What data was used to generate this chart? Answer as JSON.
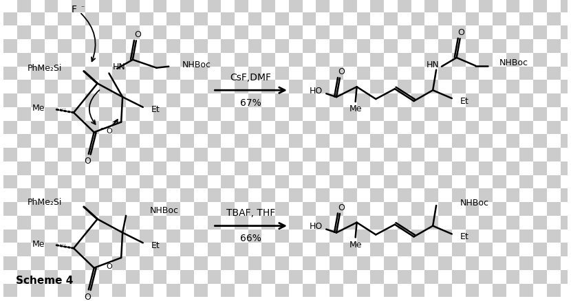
{
  "background_checker": {
    "color1": "#cccccc",
    "color2": "#ffffff",
    "square_size": 20
  },
  "title": "Scheme 4",
  "reaction1": {
    "reagents": "CsF,DMF",
    "yield": "67%"
  },
  "reaction2": {
    "reagents": "TBAF, THF",
    "yield": "66%"
  },
  "line_color": "#000000",
  "line_width": 1.8,
  "font_size_label": 9,
  "font_size_scheme": 11
}
